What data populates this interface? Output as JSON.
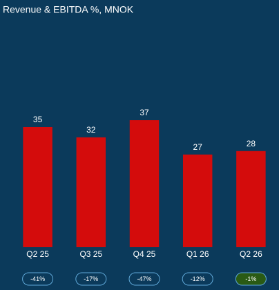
{
  "chart_data": {
    "type": "bar",
    "title": "Revenue & EBITDA %, MNOK",
    "categories": [
      "Q2 25",
      "Q3 25",
      "Q4 25",
      "Q1 26",
      "Q2 26"
    ],
    "values": [
      35,
      32,
      37,
      27,
      28
    ],
    "color": "#d40c0c",
    "ylim": [
      0,
      70
    ],
    "ebitda": {
      "values": [
        -41,
        -17,
        -47,
        -12,
        -1
      ],
      "value_labels": [
        "-41%",
        "-17%",
        "-47%",
        "-12%",
        "-1%"
      ],
      "fills": [
        "#0b3a5b",
        "#0b3a5b",
        "#0b3a5b",
        "#0b3a5b",
        "#2a5a14"
      ]
    }
  }
}
